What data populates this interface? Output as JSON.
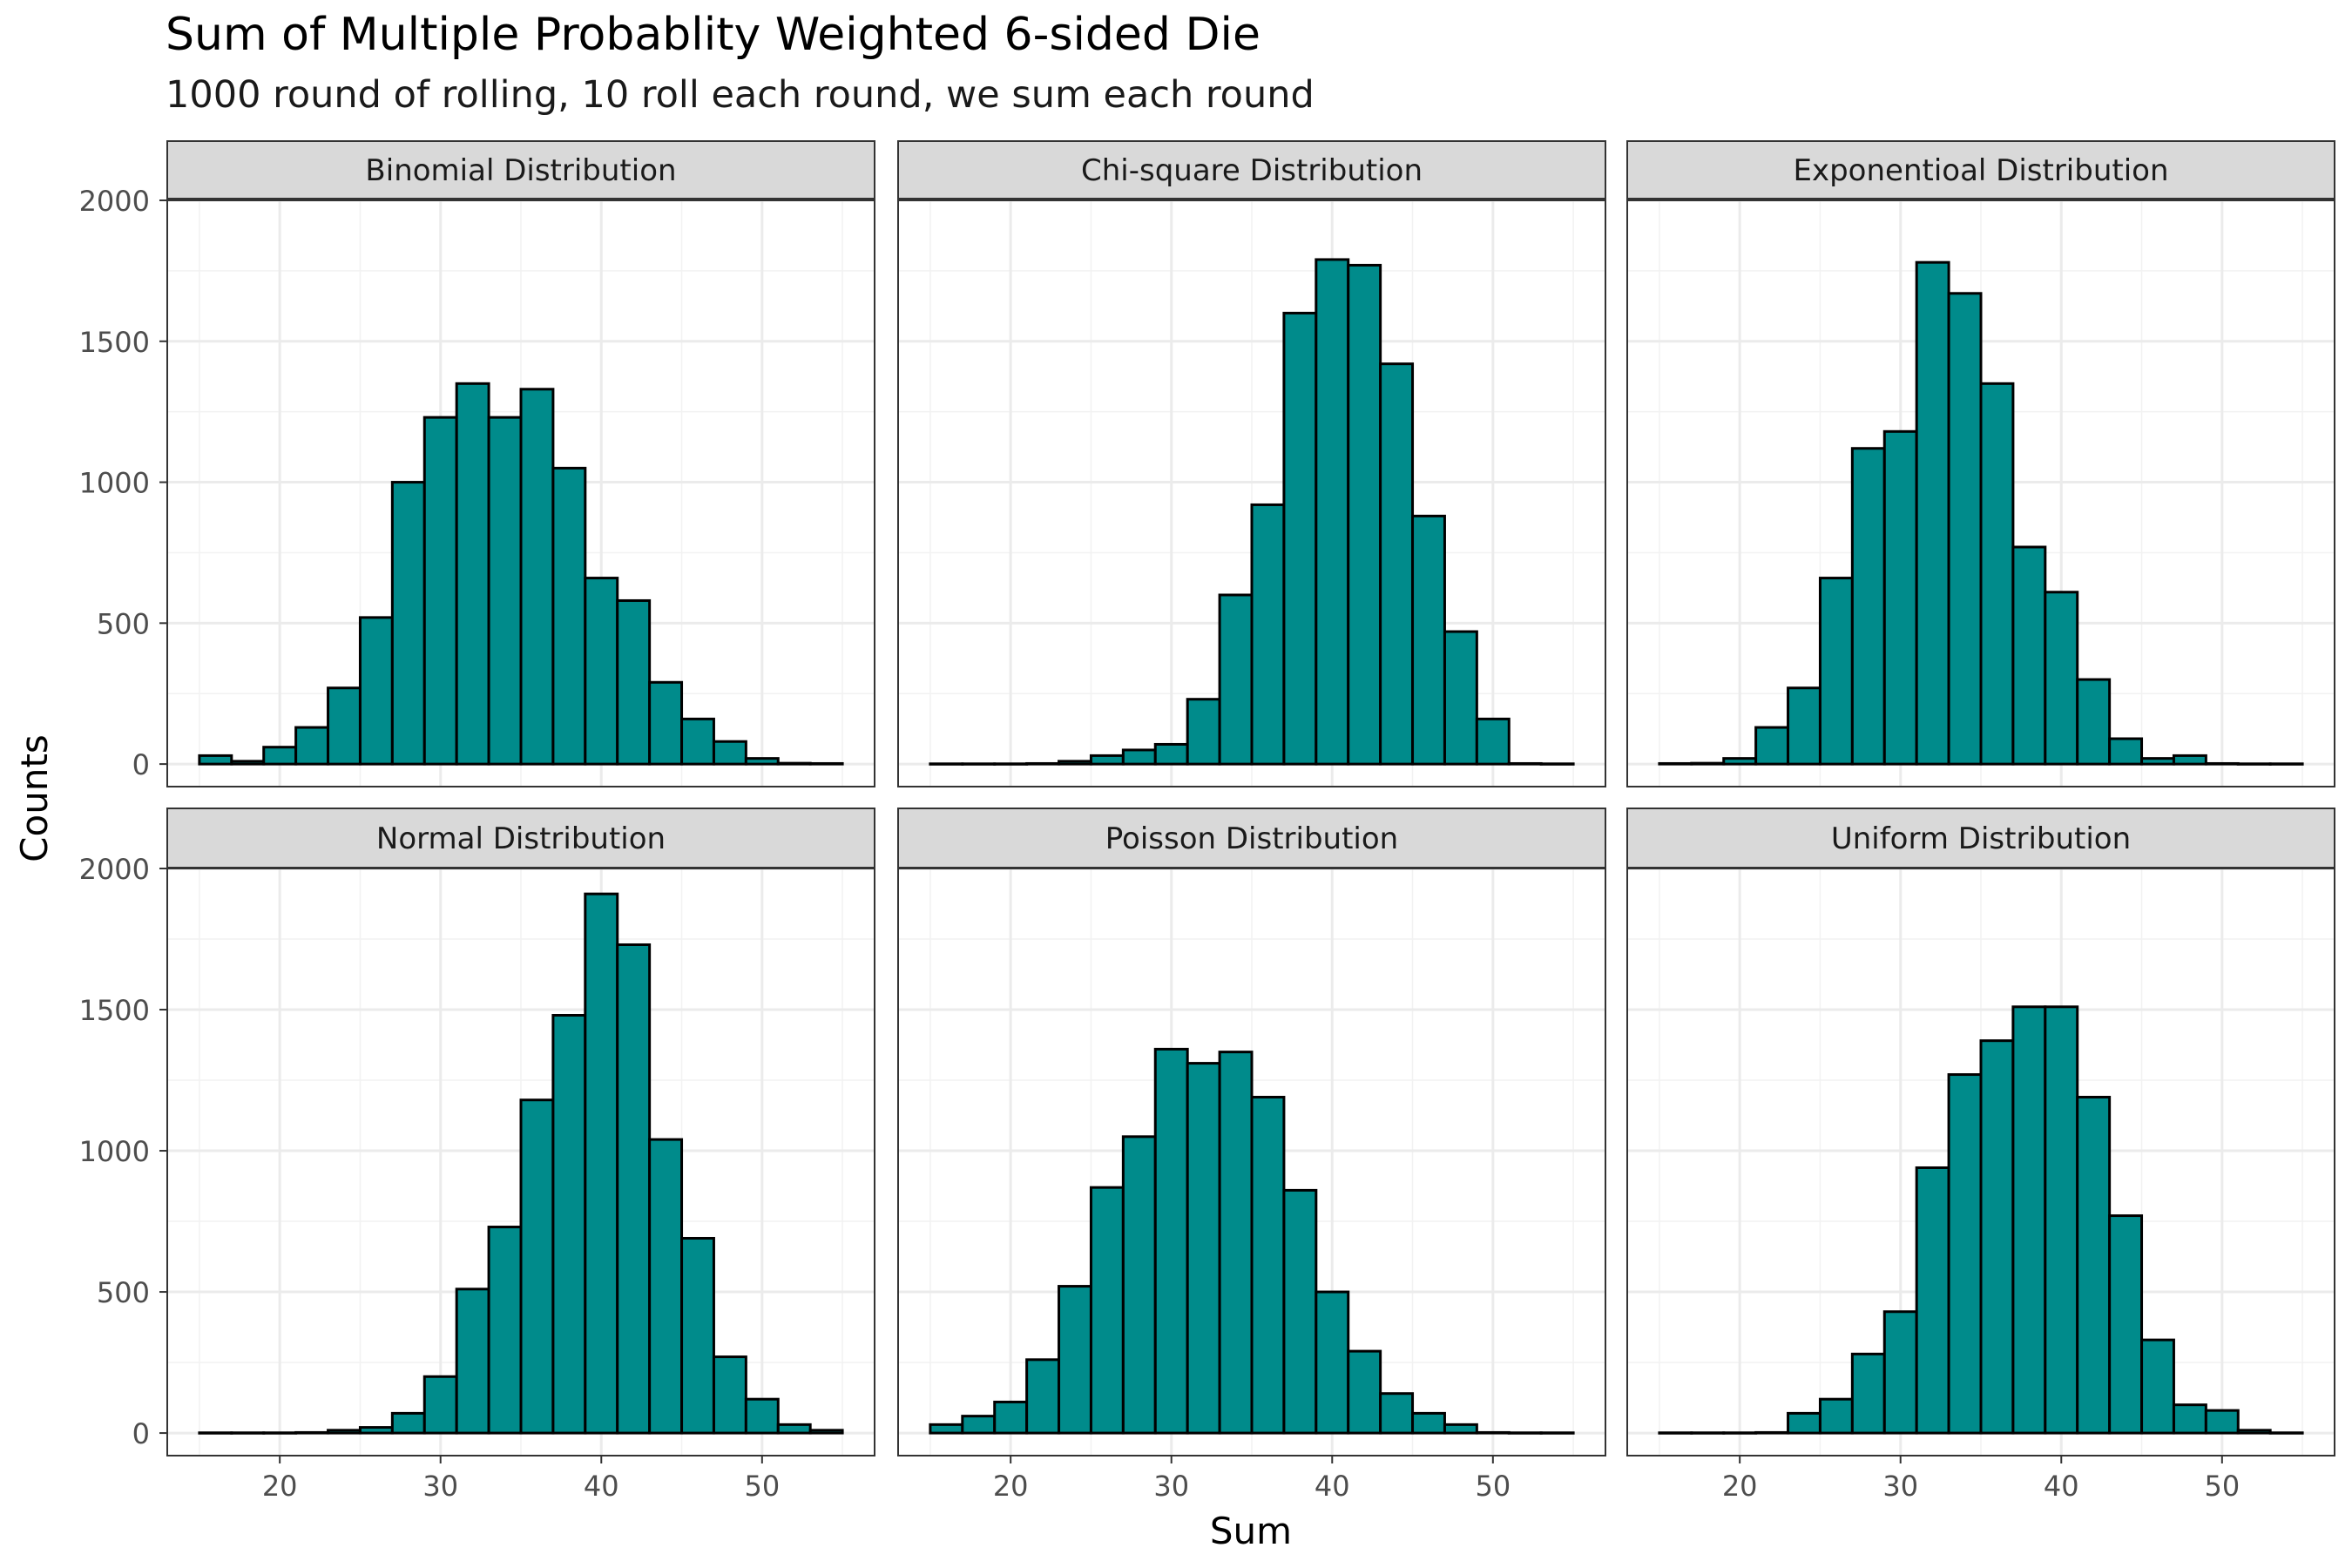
{
  "chart_data": {
    "type": "bar",
    "title": "Sum of Multiple Probablity Weighted 6-sided Die",
    "subtitle": "1000 round of rolling, 10 roll each round, we sum each round",
    "xlabel": "Sum",
    "ylabel": "Counts",
    "xlim": [
      13,
      57
    ],
    "ylim": [
      -80,
      2000
    ],
    "x_ticks": [
      20,
      30,
      40,
      50
    ],
    "y_ticks": [
      0,
      500,
      1000,
      1500,
      2000
    ],
    "grid": true,
    "layout": "facet grid, 2 rows x 3 columns, shared axes",
    "bar_color": "#008B8B",
    "bar_outline": "#000000",
    "bin_centers": [
      16,
      18,
      20,
      22,
      24,
      26,
      28,
      30,
      32,
      34,
      36,
      38,
      40,
      42,
      44,
      46,
      48,
      50,
      52,
      54
    ],
    "bin_width": 2,
    "panels": [
      {
        "name": "Binomial Distribution",
        "values": [
          30,
          10,
          60,
          130,
          270,
          520,
          1000,
          1230,
          1350,
          1230,
          1330,
          1050,
          660,
          580,
          290,
          160,
          80,
          20,
          3,
          2
        ]
      },
      {
        "name": "Chi-square Distribution",
        "values": [
          1,
          1,
          1,
          2,
          10,
          30,
          50,
          70,
          230,
          600,
          920,
          1600,
          1790,
          1770,
          1420,
          880,
          470,
          160,
          2,
          1
        ]
      },
      {
        "name": "Exponentioal Distribution",
        "values": [
          2,
          3,
          20,
          130,
          270,
          660,
          1120,
          1180,
          1780,
          1670,
          1350,
          770,
          610,
          300,
          90,
          20,
          30,
          2,
          1,
          1
        ]
      },
      {
        "name": "Normal Distribution",
        "values": [
          1,
          1,
          1,
          2,
          10,
          20,
          70,
          200,
          510,
          730,
          1180,
          1480,
          1910,
          1730,
          1040,
          690,
          270,
          120,
          30,
          10
        ]
      },
      {
        "name": "Poisson Distribution",
        "values": [
          30,
          60,
          110,
          260,
          520,
          870,
          1050,
          1360,
          1310,
          1350,
          1190,
          860,
          500,
          290,
          140,
          70,
          30,
          2,
          1,
          1
        ]
      },
      {
        "name": "Uniform Distribution",
        "values": [
          1,
          1,
          1,
          2,
          70,
          120,
          280,
          430,
          940,
          1270,
          1390,
          1510,
          1510,
          1190,
          770,
          330,
          100,
          80,
          10,
          1
        ]
      }
    ]
  }
}
